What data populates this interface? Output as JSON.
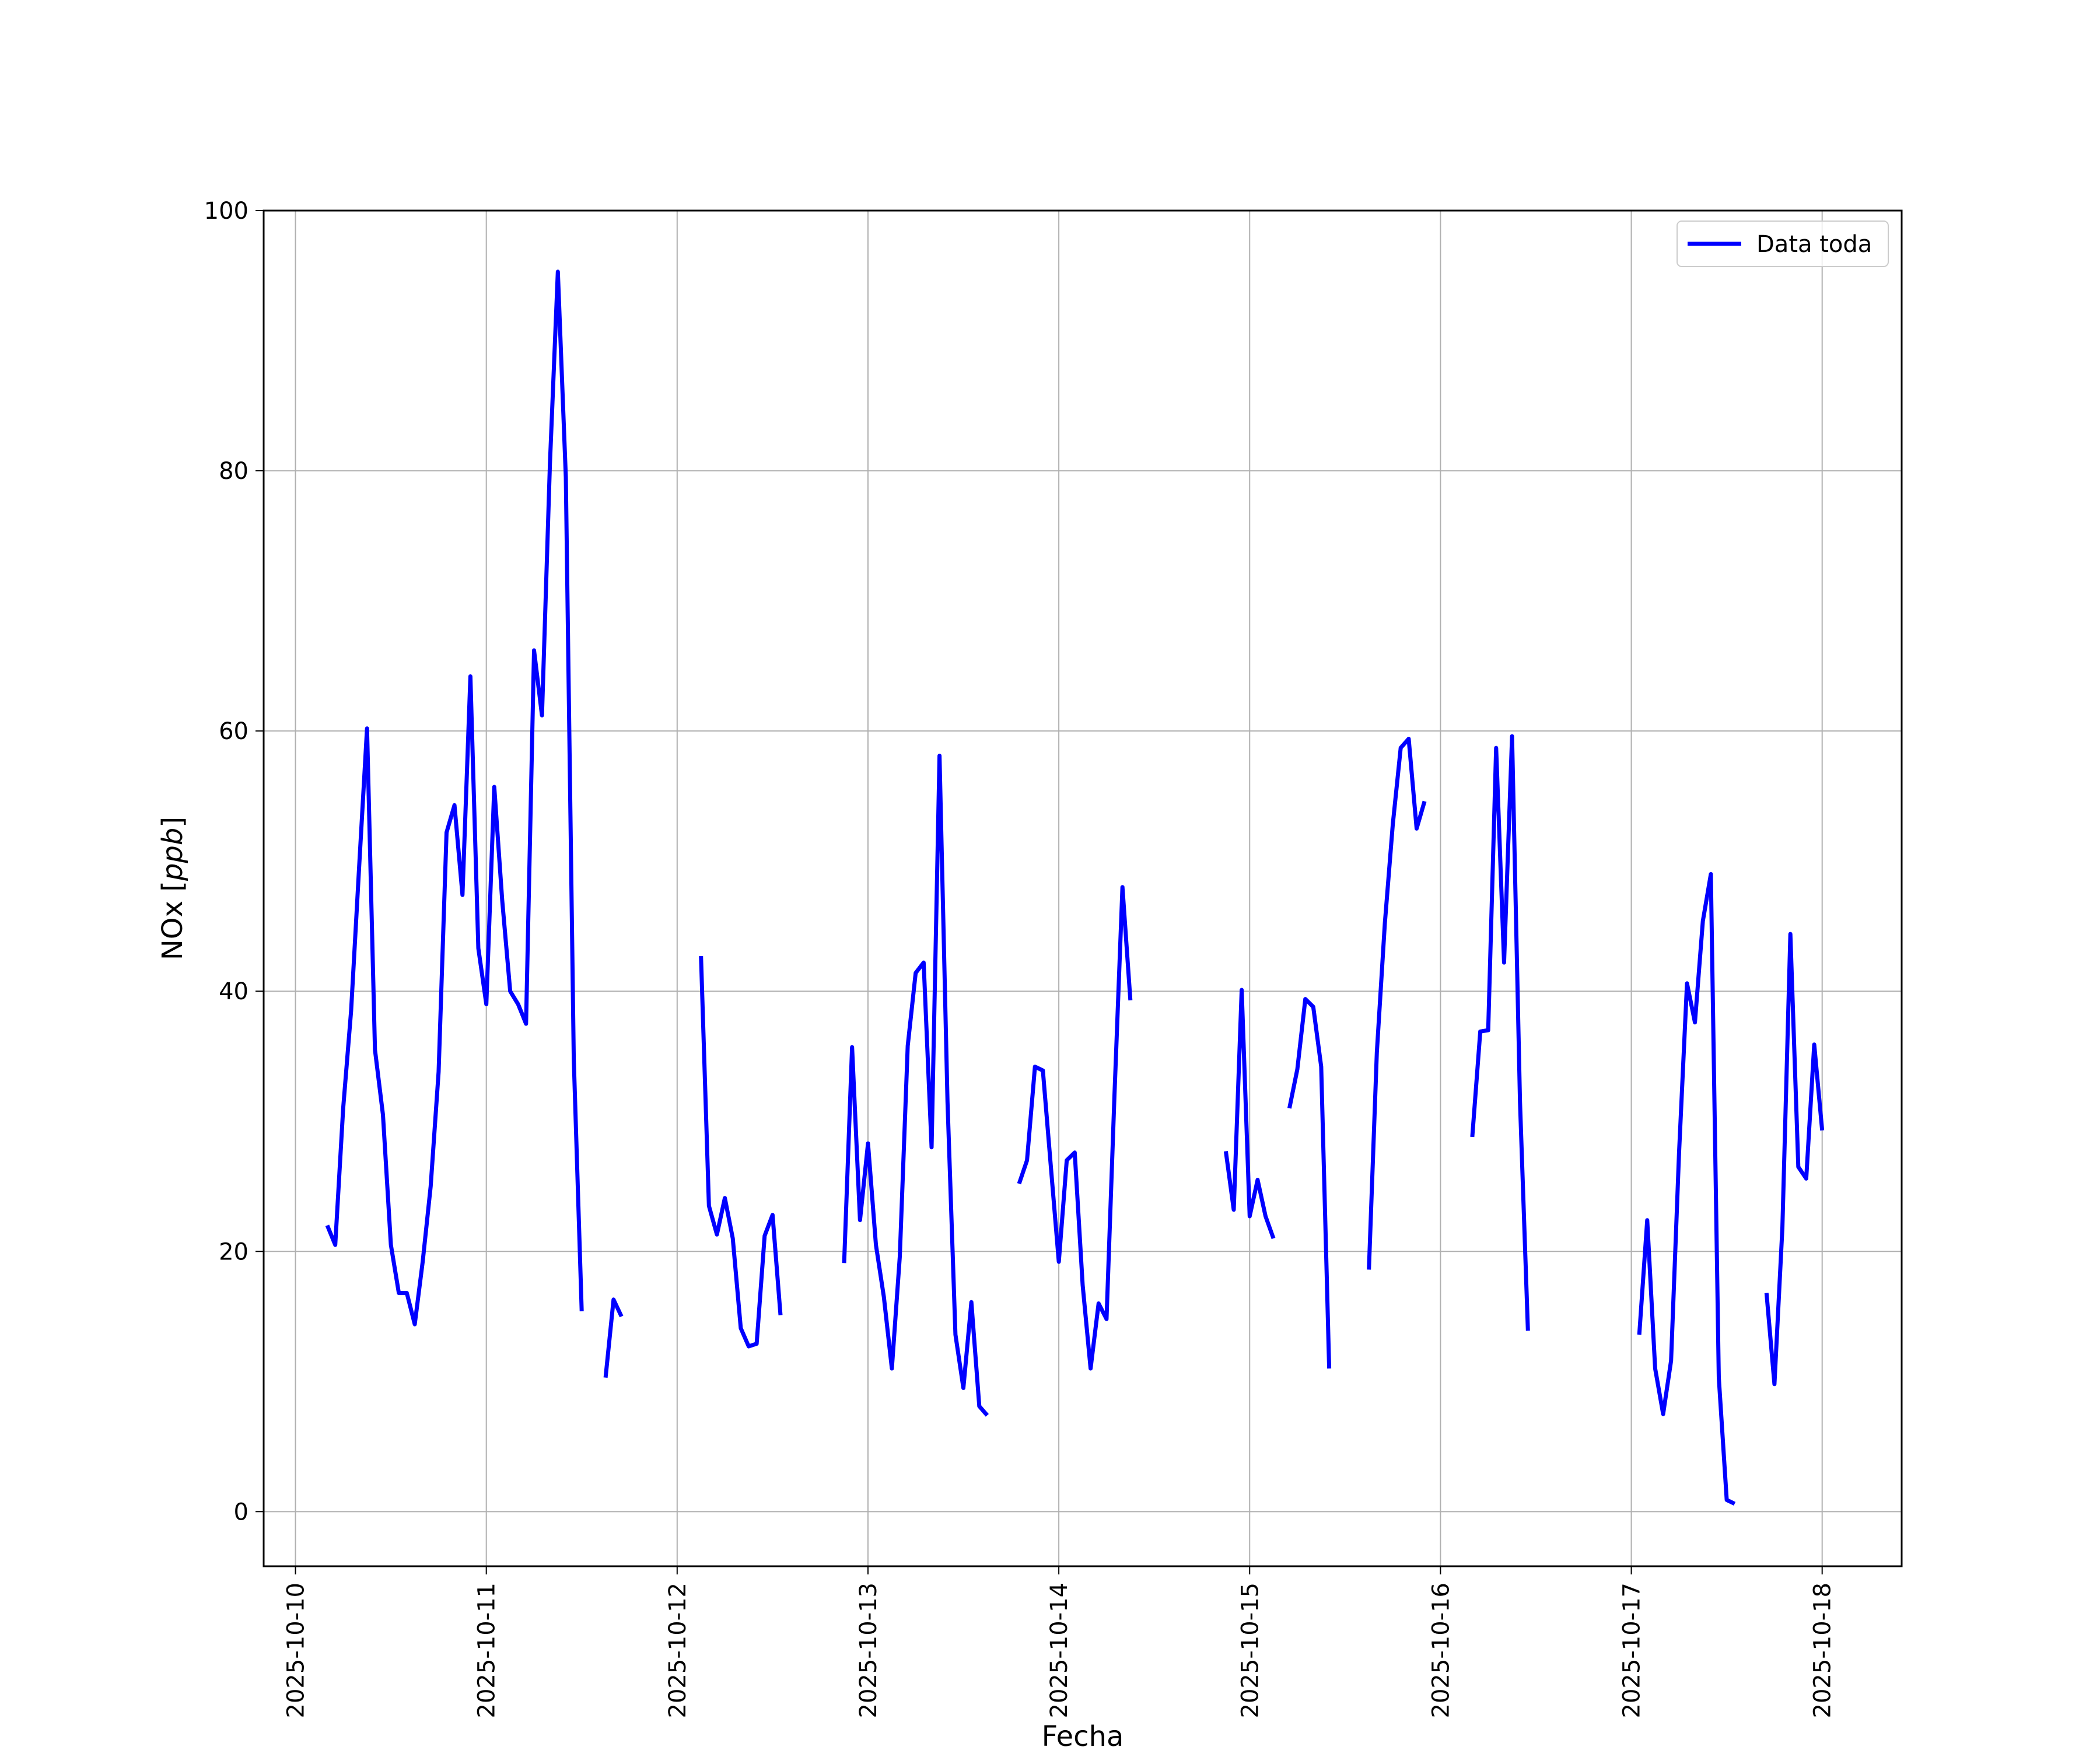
{
  "chart_data": {
    "type": "line",
    "xlabel": "Fecha",
    "ylabel": "NOx [ppb]",
    "ylabel_plain": "NOx [",
    "ylabel_unit": "ppb",
    "ylabel_close": "]",
    "xlim": [
      "2025-10-09T20:00",
      "2025-10-18T10:00"
    ],
    "ylim": [
      -4.2,
      100
    ],
    "x_ticks": [
      "2025-10-10",
      "2025-10-11",
      "2025-10-12",
      "2025-10-13",
      "2025-10-14",
      "2025-10-15",
      "2025-10-16",
      "2025-10-17",
      "2025-10-18"
    ],
    "y_ticks": [
      0,
      20,
      40,
      60,
      80,
      100
    ],
    "grid": true,
    "legend_position": "top-right",
    "color": "#0000ff",
    "series": [
      {
        "name": "Data toda",
        "segments": [
          [
            [
              "2025-10-10T04:00",
              22.0
            ],
            [
              "2025-10-10T05:00",
              20.5
            ],
            [
              "2025-10-10T06:00",
              31.0
            ],
            [
              "2025-10-10T07:00",
              38.5
            ],
            [
              "2025-10-10T08:00",
              49.5
            ],
            [
              "2025-10-10T09:00",
              60.2
            ],
            [
              "2025-10-10T10:00",
              35.5
            ],
            [
              "2025-10-10T11:00",
              30.5
            ],
            [
              "2025-10-10T12:00",
              20.5
            ],
            [
              "2025-10-10T13:00",
              16.8
            ],
            [
              "2025-10-10T14:00",
              16.8
            ],
            [
              "2025-10-10T15:00",
              14.4
            ],
            [
              "2025-10-10T16:00",
              19.2
            ],
            [
              "2025-10-10T17:00",
              25.0
            ],
            [
              "2025-10-10T18:00",
              33.8
            ],
            [
              "2025-10-10T19:00",
              52.2
            ],
            [
              "2025-10-10T20:00",
              54.3
            ],
            [
              "2025-10-10T21:00",
              47.4
            ],
            [
              "2025-10-10T22:00",
              64.2
            ],
            [
              "2025-10-10T23:00",
              43.3
            ],
            [
              "2025-10-11T00:00",
              39.0
            ],
            [
              "2025-10-11T01:00",
              55.7
            ],
            [
              "2025-10-11T02:00",
              47.0
            ],
            [
              "2025-10-11T03:00",
              40.0
            ],
            [
              "2025-10-11T04:00",
              39.0
            ],
            [
              "2025-10-11T05:00",
              37.5
            ],
            [
              "2025-10-11T06:00",
              66.2
            ],
            [
              "2025-10-11T07:00",
              61.2
            ],
            [
              "2025-10-11T08:00",
              80.5
            ],
            [
              "2025-10-11T09:00",
              95.3
            ],
            [
              "2025-10-11T10:00",
              79.5
            ],
            [
              "2025-10-11T11:00",
              34.8
            ],
            [
              "2025-10-11T12:00",
              15.4
            ]
          ],
          [
            [
              "2025-10-11T15:00",
              10.3
            ],
            [
              "2025-10-11T16:00",
              16.3
            ],
            [
              "2025-10-11T17:00",
              15.0
            ]
          ],
          [
            [
              "2025-10-12T03:00",
              42.7
            ],
            [
              "2025-10-12T04:00",
              23.5
            ],
            [
              "2025-10-12T05:00",
              21.3
            ],
            [
              "2025-10-12T06:00",
              24.1
            ],
            [
              "2025-10-12T07:00",
              21.0
            ],
            [
              "2025-10-12T08:00",
              14.1
            ],
            [
              "2025-10-12T09:00",
              12.7
            ],
            [
              "2025-10-12T10:00",
              12.9
            ],
            [
              "2025-10-12T11:00",
              21.2
            ],
            [
              "2025-10-12T12:00",
              22.8
            ],
            [
              "2025-10-12T13:00",
              15.1
            ]
          ],
          [
            [
              "2025-10-12T21:00",
              19.1
            ],
            [
              "2025-10-12T22:00",
              35.7
            ],
            [
              "2025-10-12T23:00",
              22.4
            ],
            [
              "2025-10-13T00:00",
              28.3
            ],
            [
              "2025-10-13T01:00",
              20.5
            ],
            [
              "2025-10-13T02:00",
              16.5
            ],
            [
              "2025-10-13T03:00",
              11.0
            ],
            [
              "2025-10-13T04:00",
              19.6
            ],
            [
              "2025-10-13T05:00",
              35.8
            ],
            [
              "2025-10-13T06:00",
              41.4
            ],
            [
              "2025-10-13T07:00",
              42.2
            ],
            [
              "2025-10-13T08:00",
              28.0
            ],
            [
              "2025-10-13T09:00",
              58.1
            ],
            [
              "2025-10-13T10:00",
              31.5
            ],
            [
              "2025-10-13T11:00",
              13.6
            ],
            [
              "2025-10-13T12:00",
              9.5
            ],
            [
              "2025-10-13T13:00",
              16.1
            ],
            [
              "2025-10-13T14:00",
              8.1
            ],
            [
              "2025-10-13T15:00",
              7.4
            ]
          ],
          [
            [
              "2025-10-13T19:00",
              25.2
            ],
            [
              "2025-10-13T20:00",
              27.0
            ],
            [
              "2025-10-13T21:00",
              34.2
            ],
            [
              "2025-10-13T22:00",
              33.9
            ],
            [
              "2025-10-13T23:00",
              26.5
            ],
            [
              "2025-10-14T00:00",
              19.2
            ],
            [
              "2025-10-14T01:00",
              27.0
            ],
            [
              "2025-10-14T02:00",
              27.6
            ],
            [
              "2025-10-14T03:00",
              17.4
            ],
            [
              "2025-10-14T04:00",
              11.0
            ],
            [
              "2025-10-14T05:00",
              16.0
            ],
            [
              "2025-10-14T06:00",
              14.8
            ],
            [
              "2025-10-14T07:00",
              32.0
            ],
            [
              "2025-10-14T08:00",
              48.0
            ],
            [
              "2025-10-14T09:00",
              39.3
            ]
          ],
          [
            [
              "2025-10-14T21:00",
              27.7
            ],
            [
              "2025-10-14T22:00",
              23.2
            ],
            [
              "2025-10-14T23:00",
              40.1
            ],
            [
              "2025-10-15T00:00",
              22.7
            ],
            [
              "2025-10-15T01:00",
              25.5
            ],
            [
              "2025-10-15T02:00",
              22.7
            ],
            [
              "2025-10-15T03:00",
              21.0
            ]
          ],
          [
            [
              "2025-10-15T05:00",
              31.0
            ],
            [
              "2025-10-15T06:00",
              34.0
            ],
            [
              "2025-10-15T07:00",
              39.4
            ],
            [
              "2025-10-15T08:00",
              38.8
            ],
            [
              "2025-10-15T09:00",
              34.2
            ],
            [
              "2025-10-15T10:00",
              11.0
            ]
          ],
          [
            [
              "2025-10-15T15:00",
              18.6
            ],
            [
              "2025-10-15T16:00",
              35.3
            ],
            [
              "2025-10-15T17:00",
              45.2
            ],
            [
              "2025-10-15T18:00",
              52.8
            ],
            [
              "2025-10-15T19:00",
              58.7
            ],
            [
              "2025-10-15T20:00",
              59.4
            ],
            [
              "2025-10-15T21:00",
              52.5
            ],
            [
              "2025-10-15T22:00",
              54.6
            ]
          ],
          [
            [
              "2025-10-16T04:00",
              28.8
            ],
            [
              "2025-10-16T05:00",
              36.9
            ],
            [
              "2025-10-16T06:00",
              37.0
            ],
            [
              "2025-10-16T07:00",
              58.7
            ],
            [
              "2025-10-16T08:00",
              42.2
            ],
            [
              "2025-10-16T09:00",
              59.6
            ],
            [
              "2025-10-16T10:00",
              31.5
            ],
            [
              "2025-10-16T11:00",
              13.9
            ]
          ],
          [
            [
              "2025-10-17T01:00",
              13.6
            ],
            [
              "2025-10-17T02:00",
              22.4
            ],
            [
              "2025-10-17T03:00",
              11.0
            ],
            [
              "2025-10-17T04:00",
              7.5
            ],
            [
              "2025-10-17T05:00",
              11.6
            ],
            [
              "2025-10-17T06:00",
              27.5
            ],
            [
              "2025-10-17T07:00",
              40.6
            ],
            [
              "2025-10-17T08:00",
              37.6
            ],
            [
              "2025-10-17T09:00",
              45.4
            ],
            [
              "2025-10-17T10:00",
              49.0
            ],
            [
              "2025-10-17T11:00",
              10.3
            ],
            [
              "2025-10-17T12:00",
              0.9
            ],
            [
              "2025-10-17T13:00",
              0.6
            ]
          ],
          [
            [
              "2025-10-17T17:00",
              16.8
            ],
            [
              "2025-10-17T18:00",
              9.8
            ],
            [
              "2025-10-17T19:00",
              21.8
            ],
            [
              "2025-10-17T20:00",
              44.4
            ],
            [
              "2025-10-17T21:00",
              26.5
            ],
            [
              "2025-10-17T22:00",
              25.6
            ],
            [
              "2025-10-17T23:00",
              35.9
            ],
            [
              "2025-10-18T00:00",
              29.3
            ]
          ]
        ]
      }
    ]
  }
}
